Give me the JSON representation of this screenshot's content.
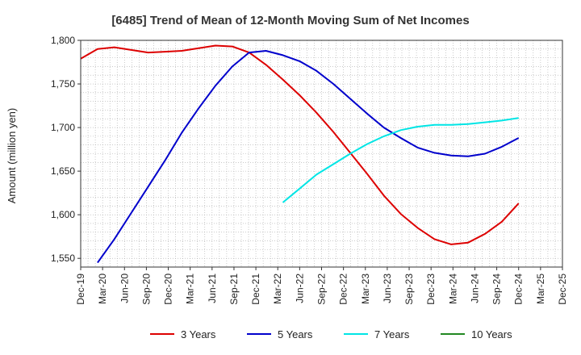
{
  "chart_data": {
    "type": "line",
    "title": "[6485]  Trend of Mean of 12-Month Moving Sum of Net Incomes",
    "ylabel": "Amount (million yen)",
    "xlabel": "",
    "ylim": [
      1540,
      1800
    ],
    "y_ticks": [
      1550,
      1600,
      1650,
      1700,
      1750,
      1800
    ],
    "y_tick_labels": [
      "1,550",
      "1,600",
      "1,650",
      "1,700",
      "1,750",
      "1,800"
    ],
    "x_ticks": [
      "Dec-19",
      "Mar-20",
      "Jun-20",
      "Sep-20",
      "Dec-20",
      "Mar-21",
      "Jun-21",
      "Sep-21",
      "Dec-21",
      "Mar-22",
      "Jun-22",
      "Sep-22",
      "Dec-22",
      "Mar-23",
      "Jun-23",
      "Sep-23",
      "Dec-23",
      "Mar-24",
      "Jun-24",
      "Sep-24",
      "Dec-24",
      "Mar-25",
      "Dec-25"
    ],
    "grid": true,
    "legend_position": "bottom",
    "series": [
      {
        "name": "3 Years",
        "color": "#dd0000",
        "values": [
          1779,
          1790,
          1792,
          1789,
          1786,
          1787,
          1788,
          1791,
          1794,
          1793,
          1786,
          1772,
          1755,
          1737,
          1717,
          1695,
          1671,
          1647,
          1622,
          1601,
          1585,
          1572,
          1566,
          1568,
          1578,
          1592,
          1613
        ]
      },
      {
        "name": "5 Years",
        "color": "#0000cc",
        "values": [
          null,
          1545,
          1572,
          1602,
          1632,
          1662,
          1694,
          1722,
          1748,
          1770,
          1786,
          1788,
          1783,
          1776,
          1765,
          1750,
          1733,
          1716,
          1700,
          1688,
          1677,
          1671,
          1668,
          1667,
          1670,
          1678,
          1688
        ]
      },
      {
        "name": "7 Years",
        "color": "#00e5e5",
        "values": [
          null,
          null,
          null,
          null,
          null,
          null,
          null,
          null,
          null,
          null,
          null,
          null,
          1614,
          1630,
          1646,
          1658,
          1670,
          1681,
          1690,
          1697,
          1701,
          1703,
          1703,
          1704,
          1706,
          1708,
          1711
        ]
      },
      {
        "name": "10 Years",
        "color": "#228822",
        "values": []
      }
    ]
  }
}
